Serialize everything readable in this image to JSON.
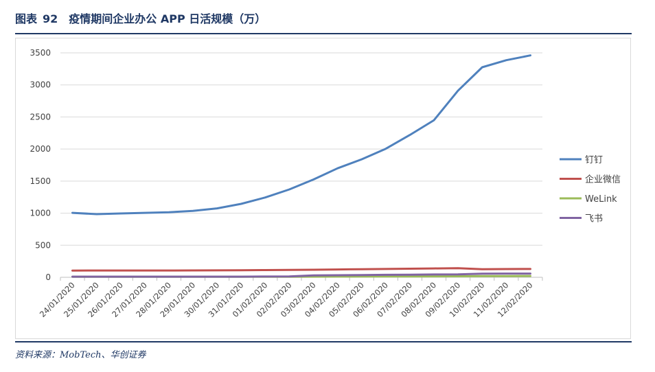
{
  "header": {
    "figure_label": "图表",
    "figure_number": "92",
    "title": "疫情期间企业办公 APP 日活规模（万）"
  },
  "footer": {
    "source": "资料来源：MobTech、华创证券"
  },
  "chart_data": {
    "type": "line",
    "title": "疫情期间企业办公 APP 日活规模（万）",
    "xlabel": "",
    "ylabel": "",
    "ylim": [
      0,
      3500
    ],
    "yticks": [
      0,
      500,
      1000,
      1500,
      2000,
      2500,
      3000,
      3500
    ],
    "grid": true,
    "legend": "right",
    "categories": [
      "24/01/2020",
      "25/01/2020",
      "26/01/2020",
      "27/01/2020",
      "28/01/2020",
      "29/01/2020",
      "30/01/2020",
      "31/01/2020",
      "01/02/2020",
      "02/02/2020",
      "03/02/2020",
      "04/02/2020",
      "05/02/2020",
      "06/02/2020",
      "07/02/2020",
      "08/02/2020",
      "09/02/2020",
      "10/02/2020",
      "11/02/2020",
      "12/02/2020"
    ],
    "series": [
      {
        "name": "钉钉",
        "color": "#4f81bd",
        "values": [
          1005,
          985,
          995,
          1005,
          1015,
          1035,
          1075,
          1145,
          1245,
          1370,
          1525,
          1700,
          1840,
          2005,
          2220,
          2450,
          2910,
          3275,
          3385,
          3460
        ]
      },
      {
        "name": "企业微信",
        "color": "#c0504d",
        "values": [
          105,
          106,
          106,
          106,
          106,
          107,
          108,
          110,
          112,
          115,
          118,
          122,
          126,
          130,
          134,
          138,
          142,
          125,
          128,
          130
        ]
      },
      {
        "name": "WeLink",
        "color": "#9bbb59",
        "values": [
          8,
          8,
          8,
          8,
          8,
          8,
          8,
          8,
          9,
          9,
          10,
          11,
          12,
          13,
          14,
          15,
          16,
          18,
          19,
          20
        ]
      },
      {
        "name": "飞书",
        "color": "#8064a2",
        "values": [
          10,
          10,
          10,
          10,
          10,
          10,
          10,
          10,
          12,
          13,
          30,
          32,
          35,
          38,
          41,
          44,
          46,
          57,
          58,
          58
        ]
      }
    ]
  }
}
